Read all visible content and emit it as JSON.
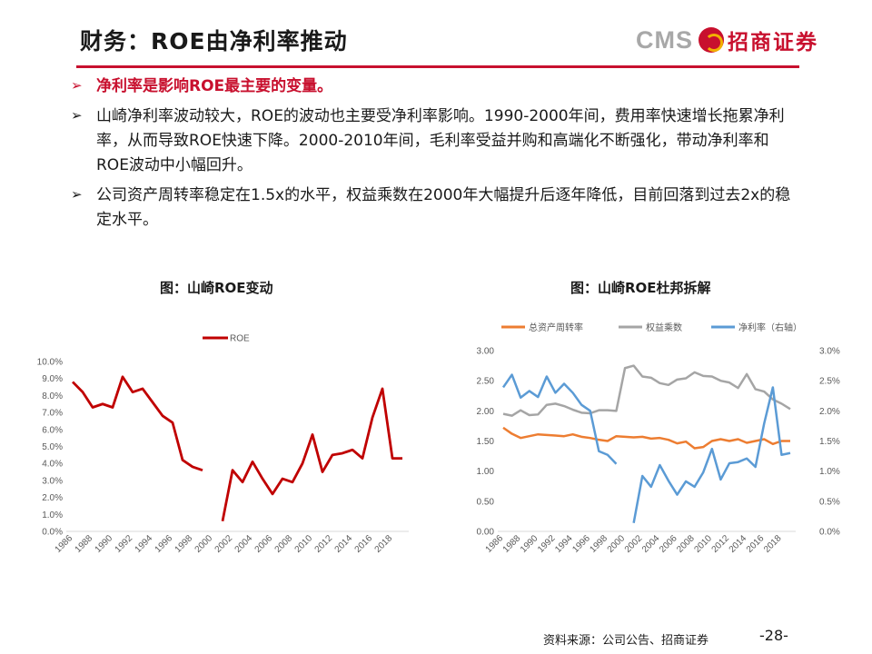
{
  "header": {
    "title": "财务：ROE由净利率推动",
    "logo_latin": "CMS",
    "logo_cn": "招商证券"
  },
  "bullets": [
    "净利率是影响ROE最主要的变量。",
    "山崎净利率波动较大，ROE的波动也主要受净利率影响。1990-2000年间，费用率快速增长拖累净利率，从而导致ROE快速下降。2000-2010年间，毛利率受益并购和高端化不断强化，带动净利率和ROE波动中小幅回升。",
    "公司资产周转率稳定在1.5x的水平，权益乘数在2000年大幅提升后逐年降低，目前回落到过去2x的稳定水平。"
  ],
  "colors": {
    "accent": "#c8102e",
    "roe": "#c00000",
    "turnover": "#ed7d31",
    "multiplier": "#a5a5a5",
    "margin": "#5b9bd5"
  },
  "footer": {
    "source": "资料来源：公司公告、招商证券",
    "page": "-28-"
  },
  "chart_data": [
    {
      "type": "line",
      "title": "图：山崎ROE变动",
      "x": [
        1986,
        1987,
        1988,
        1989,
        1990,
        1991,
        1992,
        1993,
        1994,
        1995,
        1996,
        1997,
        1998,
        1999,
        2000,
        2001,
        2002,
        2003,
        2004,
        2005,
        2006,
        2007,
        2008,
        2009,
        2010,
        2011,
        2012,
        2013,
        2014,
        2015,
        2016,
        2017,
        2018,
        2019
      ],
      "x_ticks": [
        "1986",
        "1988",
        "1990",
        "1992",
        "1994",
        "1996",
        "1998",
        "2000",
        "2002",
        "2004",
        "2006",
        "2008",
        "2010",
        "2012",
        "2014",
        "2016",
        "2018"
      ],
      "ylim": [
        0,
        0.1
      ],
      "y_ticks": [
        "0.0%",
        "1.0%",
        "2.0%",
        "3.0%",
        "4.0%",
        "5.0%",
        "6.0%",
        "7.0%",
        "8.0%",
        "9.0%",
        "10.0%"
      ],
      "legend_position": "top",
      "series": [
        {
          "name": "ROE",
          "values": [
            0.088,
            0.082,
            0.073,
            0.075,
            0.073,
            0.091,
            0.082,
            0.084,
            0.076,
            0.068,
            0.064,
            0.042,
            0.038,
            0.036,
            null,
            0.006,
            0.036,
            0.029,
            0.041,
            0.031,
            0.022,
            0.031,
            0.029,
            0.04,
            0.057,
            0.035,
            0.045,
            0.046,
            0.048,
            0.043,
            0.067,
            0.084,
            0.043,
            0.043
          ]
        }
      ]
    },
    {
      "type": "line",
      "title": "图：山崎ROE杜邦拆解",
      "x": [
        1986,
        1987,
        1988,
        1989,
        1990,
        1991,
        1992,
        1993,
        1994,
        1995,
        1996,
        1997,
        1998,
        1999,
        2000,
        2001,
        2002,
        2003,
        2004,
        2005,
        2006,
        2007,
        2008,
        2009,
        2010,
        2011,
        2012,
        2013,
        2014,
        2015,
        2016,
        2017,
        2018,
        2019
      ],
      "x_ticks": [
        "1986",
        "1988",
        "1990",
        "1992",
        "1994",
        "1996",
        "1998",
        "2000",
        "2002",
        "2004",
        "2006",
        "2008",
        "2010",
        "2012",
        "2014",
        "2016",
        "2018"
      ],
      "ylim": [
        0,
        3.0
      ],
      "y_ticks": [
        "0.00",
        "0.50",
        "1.00",
        "1.50",
        "2.00",
        "2.50",
        "3.00"
      ],
      "y2lim": [
        0,
        0.03
      ],
      "y2_ticks": [
        "0.0%",
        "0.5%",
        "1.0%",
        "1.5%",
        "2.0%",
        "2.5%",
        "3.0%"
      ],
      "legend_position": "top",
      "series": [
        {
          "name": "总资产周转率",
          "axis": "left",
          "values": [
            1.72,
            1.62,
            1.55,
            1.58,
            1.61,
            1.6,
            1.59,
            1.58,
            1.61,
            1.57,
            1.55,
            1.52,
            1.5,
            1.58,
            1.57,
            1.56,
            1.57,
            1.54,
            1.55,
            1.52,
            1.46,
            1.49,
            1.38,
            1.4,
            1.5,
            1.53,
            1.5,
            1.53,
            1.47,
            1.5,
            1.53,
            1.45,
            1.5,
            1.5
          ]
        },
        {
          "name": "权益乘数",
          "axis": "left",
          "values": [
            1.95,
            1.92,
            2.01,
            1.93,
            1.94,
            2.1,
            2.12,
            2.08,
            2.02,
            1.97,
            1.96,
            2.01,
            2.01,
            2.0,
            2.71,
            2.75,
            2.57,
            2.55,
            2.46,
            2.43,
            2.52,
            2.54,
            2.64,
            2.58,
            2.57,
            2.5,
            2.47,
            2.38,
            2.61,
            2.36,
            2.32,
            2.19,
            2.12,
            2.03
          ]
        },
        {
          "name": "净利率（右轴）",
          "axis": "right",
          "values": [
            0.0239,
            0.026,
            0.0222,
            0.0233,
            0.0223,
            0.0257,
            0.023,
            0.0245,
            0.023,
            0.021,
            0.02,
            0.0133,
            0.0127,
            0.0112,
            null,
            0.0014,
            0.0092,
            0.0074,
            0.011,
            0.0084,
            0.0061,
            0.0083,
            0.0074,
            0.0098,
            0.0137,
            0.0086,
            0.0113,
            0.0115,
            0.0121,
            0.0107,
            0.0179,
            0.0239,
            0.0127,
            0.013
          ]
        }
      ]
    }
  ]
}
